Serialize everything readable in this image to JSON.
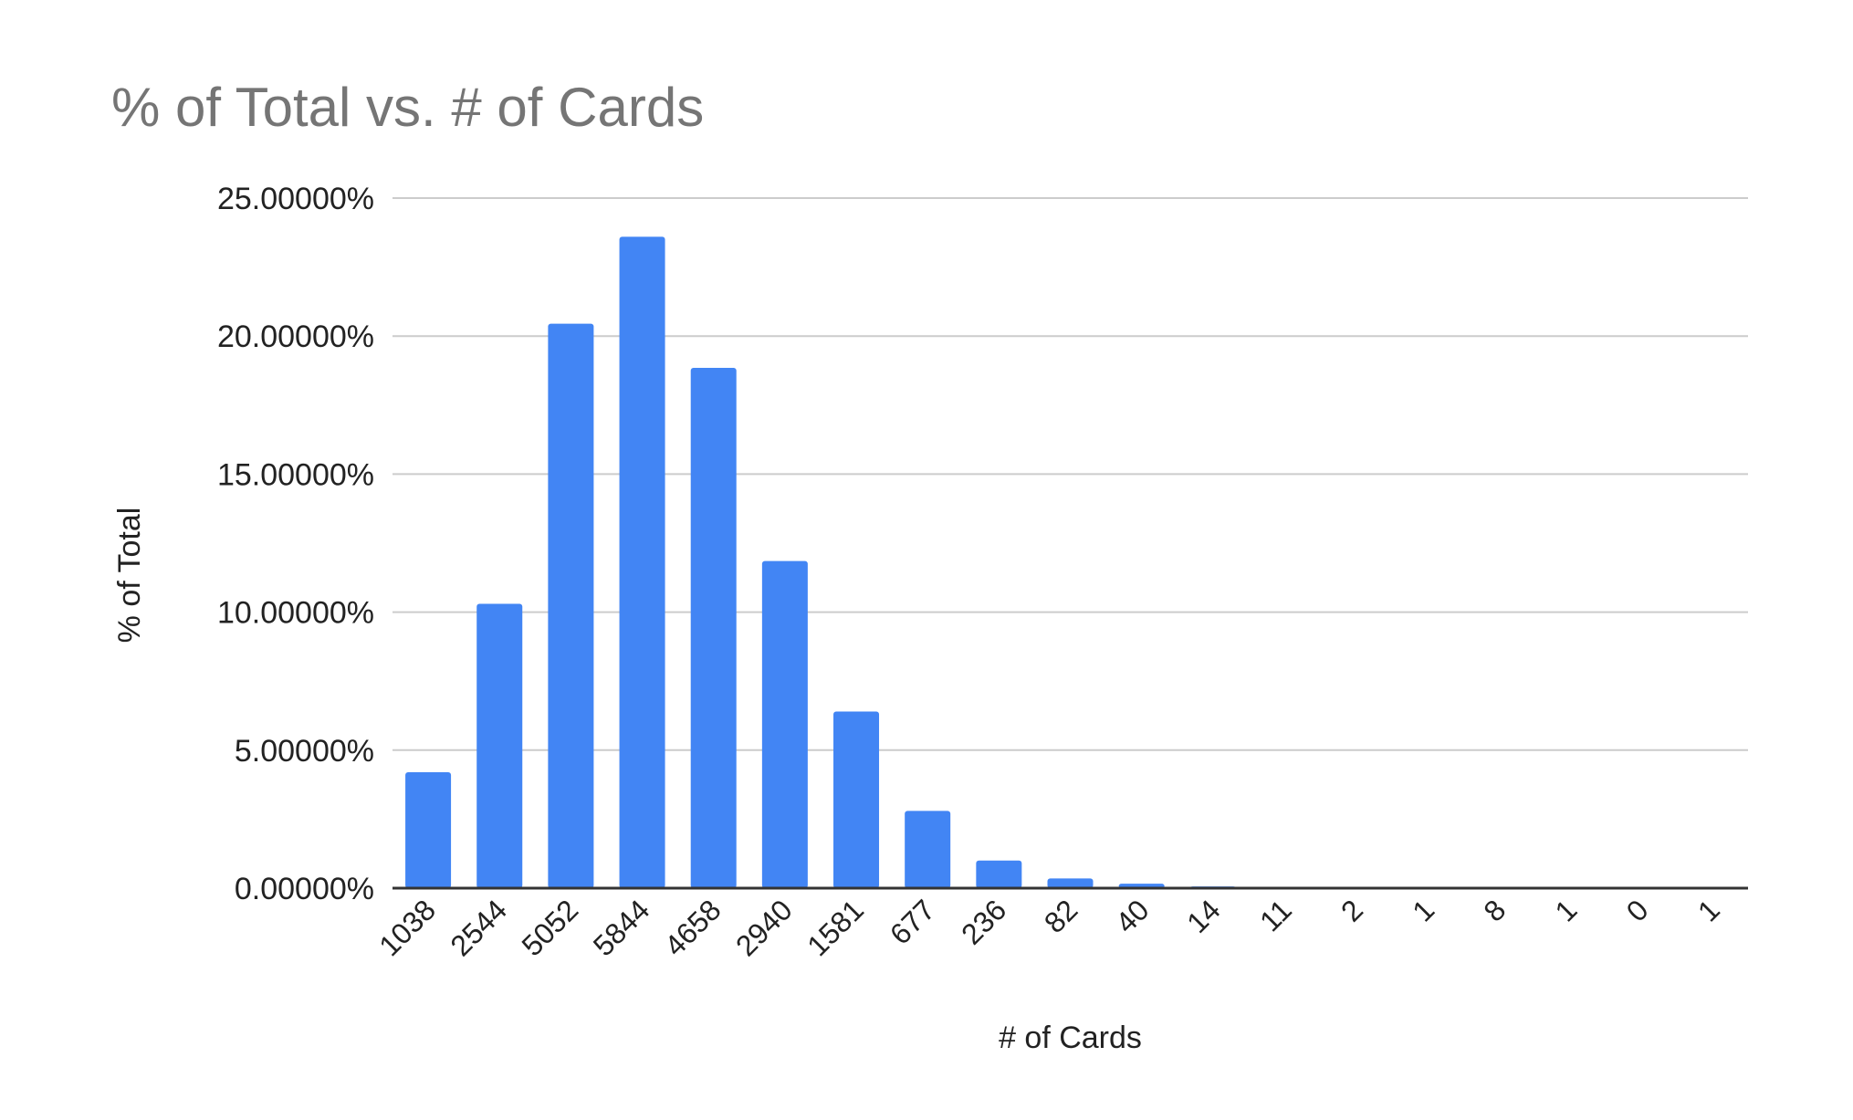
{
  "chart_data": {
    "type": "bar",
    "title": "% of Total vs. # of Cards",
    "xlabel": "# of Cards",
    "ylabel": "% of Total",
    "categories": [
      "1038",
      "2544",
      "5052",
      "5844",
      "4658",
      "2940",
      "1581",
      "677",
      "236",
      "82",
      "40",
      "14",
      "11",
      "2",
      "1",
      "8",
      "1",
      "0",
      "1"
    ],
    "values": [
      4.2,
      10.3,
      20.45,
      23.6,
      18.85,
      11.85,
      6.4,
      2.8,
      1.0,
      0.35,
      0.16,
      0.06,
      0.04,
      0.01,
      0.0,
      0.03,
      0.0,
      0.0,
      0.0
    ],
    "ylim": [
      0,
      25
    ],
    "yticks": [
      0,
      5,
      10,
      15,
      20,
      25
    ],
    "ytick_labels": [
      "0.00000%",
      "5.00000%",
      "10.00000%",
      "15.00000%",
      "20.00000%",
      "25.00000%"
    ],
    "grid": true,
    "legend": "none",
    "colors": {
      "bar": "#4285f4",
      "grid": "#cccccc",
      "axis": "#333333",
      "title": "#757575",
      "text": "#222222"
    }
  }
}
